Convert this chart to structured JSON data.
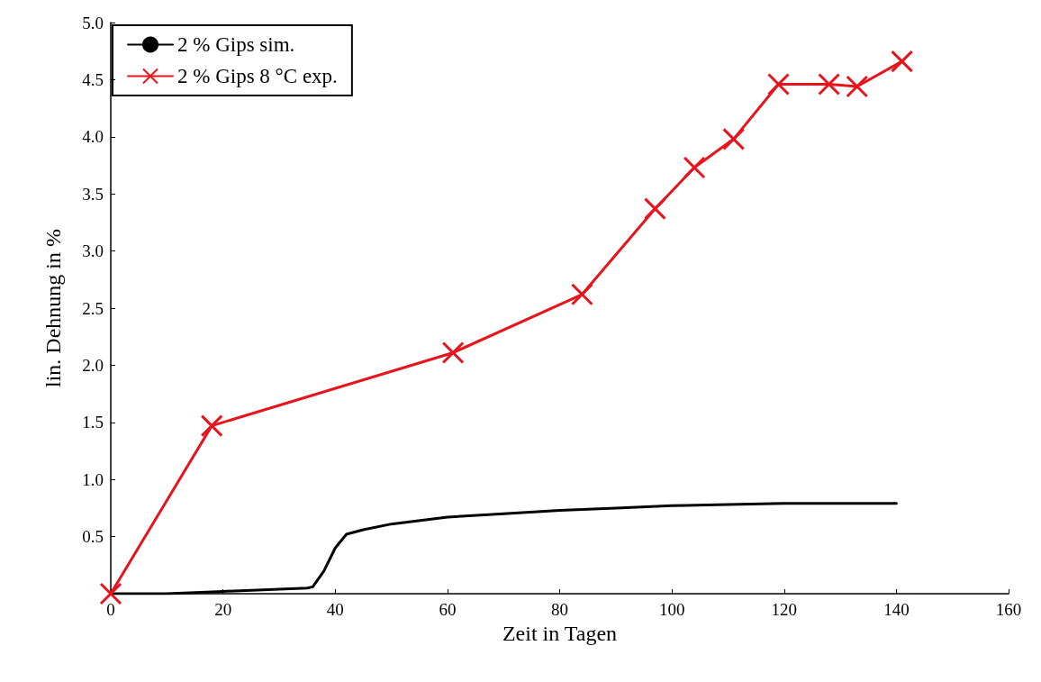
{
  "chart_data": {
    "type": "line",
    "xlabel": "Zeit in Tagen",
    "ylabel": "lin. Dehnung in %",
    "xlim": [
      0,
      160
    ],
    "xticks": [
      0,
      20,
      40,
      60,
      80,
      100,
      120,
      140,
      160
    ],
    "ylim": [
      0,
      5
    ],
    "yticks": [
      {
        "value": 0,
        "label": null
      },
      {
        "value": 0.5,
        "label": "0.5"
      },
      {
        "value": 1,
        "label": "1.0"
      },
      {
        "value": 1.5,
        "label": "1.5"
      },
      {
        "value": 2,
        "label": "2.0"
      },
      {
        "value": 2.5,
        "label": "2.5"
      },
      {
        "value": 3,
        "label": "3.0"
      },
      {
        "value": 3.5,
        "label": "3.5"
      },
      {
        "value": 4,
        "label": "4.0"
      },
      {
        "value": 4.5,
        "label": "4.5"
      },
      {
        "value": 5,
        "label": "5.0"
      }
    ],
    "grid": false,
    "legend": "top left",
    "line_style": "solid",
    "series": [
      {
        "name": "2 % Gips sim.",
        "color": "#000000",
        "marker": "none",
        "x": [
          0,
          10,
          20,
          30,
          35,
          36,
          38,
          40,
          42,
          45,
          50,
          60,
          70,
          80,
          90,
          100,
          110,
          120,
          140
        ],
        "values": [
          0,
          0,
          0.02,
          0.04,
          0.05,
          0.06,
          0.2,
          0.4,
          0.52,
          0.56,
          0.61,
          0.67,
          0.7,
          0.73,
          0.75,
          0.77,
          0.78,
          0.79,
          0.79
        ]
      },
      {
        "name": "2 % Gips 8 °C exp.",
        "color": "#e8141c",
        "marker": "cross",
        "x": [
          0,
          18,
          61,
          84,
          97,
          104,
          111,
          119,
          128,
          133,
          141
        ],
        "values": [
          0,
          1.47,
          2.11,
          2.62,
          3.37,
          3.73,
          3.98,
          4.46,
          4.46,
          4.44,
          4.66
        ]
      }
    ]
  }
}
